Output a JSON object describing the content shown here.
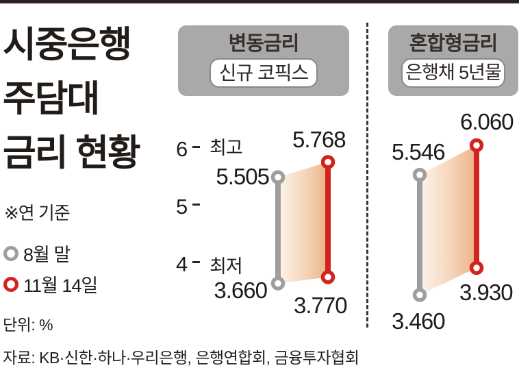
{
  "title": {
    "lines": [
      "시중은행",
      "주담대",
      "금리 현황"
    ]
  },
  "meta": {
    "note": "※연 기준",
    "unit": "단위: %",
    "source": "자료: KB·신한·하나·우리은행, 은행연합회, 금융투자협회"
  },
  "legend": [
    {
      "label": "8월 말",
      "color": "#9e9e9e"
    },
    {
      "label": "11월 14일",
      "color": "#d2231e"
    }
  ],
  "chart_data": {
    "type": "bar",
    "subtype": "range-dumbbell",
    "title": "시중은행 주담대 금리 현황",
    "unit": "%",
    "basis": "연 기준",
    "y_axis": {
      "ticks": [
        6,
        5,
        4
      ],
      "range": [
        3.3,
        6.2
      ],
      "grid": false
    },
    "series": [
      {
        "name": "8월 말",
        "color": "#9e9e9e"
      },
      {
        "name": "11월 14일",
        "color": "#d2231e"
      }
    ],
    "fill_gradient": {
      "from": "#fdf4ec",
      "to": "#eab285"
    },
    "panels": [
      {
        "title": "변동금리",
        "subtitle": "신규 코픽스",
        "rows": [
          {
            "label": "최고",
            "values": [
              {
                "series": "8월 말",
                "value": 5.505,
                "text": "5.505"
              },
              {
                "series": "11월 14일",
                "value": 5.768,
                "text": "5.768"
              }
            ]
          },
          {
            "label": "최저",
            "values": [
              {
                "series": "8월 말",
                "value": 3.66,
                "text": "3.660"
              },
              {
                "series": "11월 14일",
                "value": 3.77,
                "text": "3.770"
              }
            ]
          }
        ]
      },
      {
        "title": "혼합형금리",
        "subtitle": "은행채 5년물",
        "rows": [
          {
            "label": "최고",
            "values": [
              {
                "series": "8월 말",
                "value": 5.546,
                "text": "5.546"
              },
              {
                "series": "11월 14일",
                "value": 6.06,
                "text": "6.060"
              }
            ]
          },
          {
            "label": "최저",
            "values": [
              {
                "series": "8월 말",
                "value": 3.46,
                "text": "3.460"
              },
              {
                "series": "11월 14일",
                "value": 3.93,
                "text": "3.930"
              }
            ]
          }
        ]
      }
    ]
  }
}
